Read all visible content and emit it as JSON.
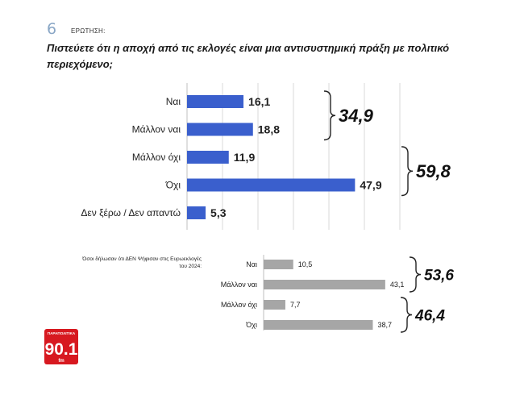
{
  "header": {
    "question_number": "6",
    "question_label": "ΕΡΩΤΗΣΗ:",
    "question_text": "Πιστεύετε ότι η αποχή από τις εκλογές είναι μια αντισυστημική πράξη με πολιτικό περιεχόμενο;"
  },
  "subset_note": "Όσοι δήλωσαν ότι ΔΕΝ Ψήφισαν στις Ευρωεκλογές του 2024:",
  "logo": {
    "top": "ΠΑΡΑΠΟΛΙΤΙΚΑ",
    "number": "90.1",
    "bottom": "fm"
  },
  "colors": {
    "primary_bar": "#3a5fcd",
    "secondary_bar": "#a6a6a6",
    "grid": "#d9d9d9"
  },
  "chart_data": [
    {
      "type": "bar",
      "orientation": "horizontal",
      "categories": [
        "Ναι",
        "Μάλλον ναι",
        "Μάλλον όχι",
        "Όχι",
        "Δεν ξέρω / Δεν απαντώ"
      ],
      "values": [
        16.1,
        18.8,
        11.9,
        47.9,
        5.3
      ],
      "value_labels": [
        "16,1",
        "18,8",
        "11,9",
        "47,9",
        "5,3"
      ],
      "groups": [
        {
          "categories": [
            "Ναι",
            "Μάλλον ναι"
          ],
          "total": "34,9"
        },
        {
          "categories": [
            "Μάλλον όχι",
            "Όχι"
          ],
          "total": "59,8"
        }
      ],
      "grid": true
    },
    {
      "type": "bar",
      "orientation": "horizontal",
      "categories": [
        "Ναι",
        "Μάλλον ναι",
        "Μάλλον όχι",
        "Όχι"
      ],
      "values": [
        10.5,
        43.1,
        7.7,
        38.7
      ],
      "value_labels": [
        "10,5",
        "43,1",
        "7,7",
        "38,7"
      ],
      "groups": [
        {
          "categories": [
            "Ναι",
            "Μάλλον ναι"
          ],
          "total": "53,6"
        },
        {
          "categories": [
            "Μάλλον όχι",
            "Όχι"
          ],
          "total": "46,4"
        }
      ],
      "grid": false
    }
  ]
}
